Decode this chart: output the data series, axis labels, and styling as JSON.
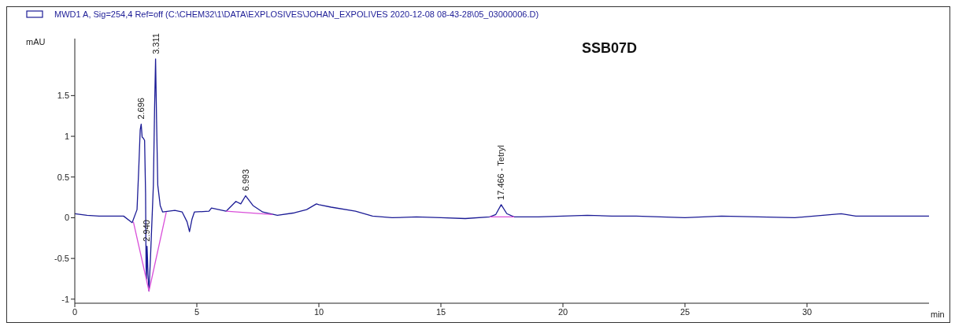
{
  "chart_data": {
    "type": "line",
    "title": "SSB07D",
    "xlabel": "min",
    "ylabel": "mAU",
    "legend": "top left",
    "marker": "none",
    "line_style": "solid",
    "xlim": [
      0,
      35
    ],
    "xticks": [
      0,
      5,
      10,
      15,
      20,
      25,
      30
    ],
    "ylim": [
      -1.05,
      2.2
    ],
    "yticks": [
      -1,
      -0.5,
      0,
      0.5,
      1,
      1.5
    ],
    "series": [
      {
        "name": "MWD1 A, Sig=254,4 Ref=off (C:\\CHEM32\\1\\DATA\\EXPLOSIVES\\JOHAN_EXPOLIVES 2020-12-08 08-43-28\\05_03000006.D)",
        "color": "#1c1c96",
        "x": [
          0,
          0.5,
          1,
          1.5,
          2,
          2.35,
          2.55,
          2.62,
          2.68,
          2.72,
          2.76,
          2.8,
          2.86,
          2.9,
          2.92,
          2.94,
          2.96,
          2.98,
          3.0,
          3.04,
          3.1,
          3.18,
          3.22,
          3.27,
          3.31,
          3.35,
          3.4,
          3.5,
          3.6,
          4.1,
          4.4,
          4.6,
          4.7,
          4.8,
          4.9,
          5.5,
          5.6,
          5.9,
          6.2,
          6.6,
          6.8,
          7.0,
          7.3,
          7.7,
          8.3,
          9.0,
          9.5,
          9.9,
          10.0,
          10.5,
          11.5,
          12.2,
          13,
          14,
          15,
          16,
          17,
          17.25,
          17.47,
          17.7,
          18,
          19,
          20,
          21,
          22,
          23,
          24,
          25,
          26.5,
          28,
          29.5,
          31.4,
          32,
          33,
          34,
          35
        ],
        "values": [
          0.05,
          0.03,
          0.02,
          0.02,
          0.02,
          -0.06,
          0.1,
          0.6,
          1.08,
          1.15,
          0.99,
          0.98,
          0.95,
          0.3,
          -0.6,
          -0.75,
          -0.35,
          -0.5,
          -0.7,
          -0.9,
          -0.5,
          0.1,
          0.4,
          1.35,
          1.95,
          1.2,
          0.4,
          0.15,
          0.07,
          0.09,
          0.07,
          -0.05,
          -0.17,
          -0.02,
          0.07,
          0.08,
          0.12,
          0.1,
          0.08,
          0.2,
          0.17,
          0.27,
          0.15,
          0.07,
          0.03,
          0.06,
          0.1,
          0.17,
          0.16,
          0.13,
          0.08,
          0.02,
          0.0,
          0.01,
          0.0,
          -0.01,
          0.01,
          0.04,
          0.16,
          0.05,
          0.01,
          0.01,
          0.02,
          0.03,
          0.02,
          0.02,
          0.01,
          0.0,
          0.02,
          0.01,
          0.0,
          0.05,
          0.02,
          0.02,
          0.02,
          0.02
        ]
      },
      {
        "color": "#d94fd9",
        "x": [
          2.4,
          3.04,
          3.75,
          5,
          6.2,
          8.1,
          10,
          17.0,
          18.0
        ],
        "values": [
          -0.05,
          -0.9,
          0.07,
          null,
          0.08,
          0.04,
          null,
          0.01,
          0.01
        ]
      }
    ],
    "annotations": [
      {
        "text": "2.696",
        "x": 2.696,
        "y": 1.15
      },
      {
        "text": "3.311",
        "x": 3.311,
        "y": 1.95
      },
      {
        "text": "2.940",
        "x": 2.94,
        "y": -0.35
      },
      {
        "text": "6.993",
        "x": 6.993,
        "y": 0.27
      },
      {
        "text": "17.466 - Tetryl",
        "x": 17.466,
        "y": 0.16
      }
    ]
  }
}
